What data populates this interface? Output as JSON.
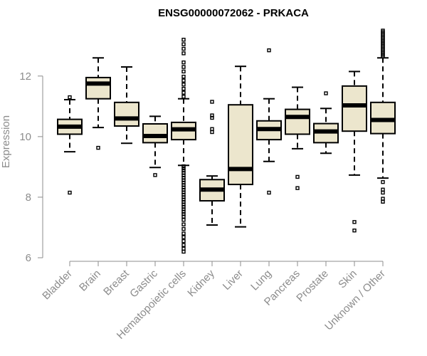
{
  "chart_data": {
    "type": "boxplot",
    "title": "ENSG00000072062 - PRKACA",
    "xlabel": "",
    "ylabel": "Expression",
    "ylim": [
      6,
      13.5
    ],
    "yticks": [
      6,
      8,
      10,
      12
    ],
    "grid": false,
    "colors": {
      "box_fill": "#ece6cd",
      "box_stroke": "#000000",
      "axis": "#8c8c8c",
      "title": "#000000"
    },
    "categories": [
      "Bladder",
      "Brain",
      "Breast",
      "Gastric",
      "Hematopoietic cells",
      "Kidney",
      "Liver",
      "Lung",
      "Pancreas",
      "Prostate",
      "Skin",
      "Unknown / Other"
    ],
    "boxes": [
      {
        "name": "Bladder",
        "whislo": 9.5,
        "q1": 10.08,
        "med": 10.33,
        "q3": 10.57,
        "whishi": 11.22,
        "fliers": [
          8.15,
          11.3
        ]
      },
      {
        "name": "Brain",
        "whislo": 10.3,
        "q1": 11.25,
        "med": 11.75,
        "q3": 11.95,
        "whishi": 12.6,
        "fliers": [
          9.63
        ]
      },
      {
        "name": "Breast",
        "whislo": 9.78,
        "q1": 10.35,
        "med": 10.6,
        "q3": 11.13,
        "whishi": 12.3,
        "fliers": []
      },
      {
        "name": "Gastric",
        "whislo": 8.98,
        "q1": 9.8,
        "med": 10.02,
        "q3": 10.42,
        "whishi": 10.67,
        "fliers": [
          8.73
        ]
      },
      {
        "name": "Hematopoietic cells",
        "whislo": 9.05,
        "q1": 9.9,
        "med": 10.24,
        "q3": 10.47,
        "whishi": 11.25,
        "fliers": [
          13.2,
          13.05,
          12.9,
          12.75,
          12.45,
          12.3,
          12.15,
          11.98,
          11.85,
          11.72,
          11.58,
          11.45,
          11.32,
          9.02,
          8.95,
          8.88,
          8.8,
          8.72,
          8.64,
          8.56,
          8.48,
          8.4,
          8.32,
          8.24,
          8.16,
          8.08,
          8.0,
          7.92,
          7.84,
          7.76,
          7.68,
          7.6,
          7.52,
          7.44,
          7.36,
          7.25,
          7.1,
          6.95,
          6.8,
          6.68,
          6.55,
          6.42,
          6.3,
          6.2
        ]
      },
      {
        "name": "Kidney",
        "whislo": 7.08,
        "q1": 7.88,
        "med": 8.25,
        "q3": 8.58,
        "whishi": 8.7,
        "fliers": [
          11.15,
          10.7,
          10.62,
          10.25,
          10.15
        ]
      },
      {
        "name": "Liver",
        "whislo": 7.02,
        "q1": 8.42,
        "med": 8.93,
        "q3": 11.05,
        "whishi": 12.32,
        "fliers": []
      },
      {
        "name": "Lung",
        "whislo": 9.18,
        "q1": 9.9,
        "med": 10.25,
        "q3": 10.52,
        "whishi": 11.25,
        "fliers": [
          12.85,
          8.15
        ]
      },
      {
        "name": "Pancreas",
        "whislo": 9.6,
        "q1": 10.08,
        "med": 10.65,
        "q3": 10.9,
        "whishi": 11.63,
        "fliers": [
          8.67,
          8.3
        ]
      },
      {
        "name": "Prostate",
        "whislo": 9.45,
        "q1": 9.8,
        "med": 10.17,
        "q3": 10.43,
        "whishi": 10.93,
        "fliers": [
          11.43
        ]
      },
      {
        "name": "Skin",
        "whislo": 8.73,
        "q1": 10.18,
        "med": 11.03,
        "q3": 11.67,
        "whishi": 12.15,
        "fliers": [
          7.18,
          6.9
        ]
      },
      {
        "name": "Unknown / Other",
        "whislo": 8.63,
        "q1": 10.1,
        "med": 10.55,
        "q3": 11.13,
        "whishi": 12.6,
        "fliers": [
          13.5,
          13.45,
          13.4,
          13.35,
          13.3,
          13.25,
          13.2,
          13.15,
          13.1,
          13.05,
          13.0,
          12.95,
          12.9,
          12.85,
          12.8,
          12.75,
          12.7,
          12.65,
          8.5,
          8.25,
          8.15,
          7.95,
          7.85
        ]
      }
    ]
  }
}
